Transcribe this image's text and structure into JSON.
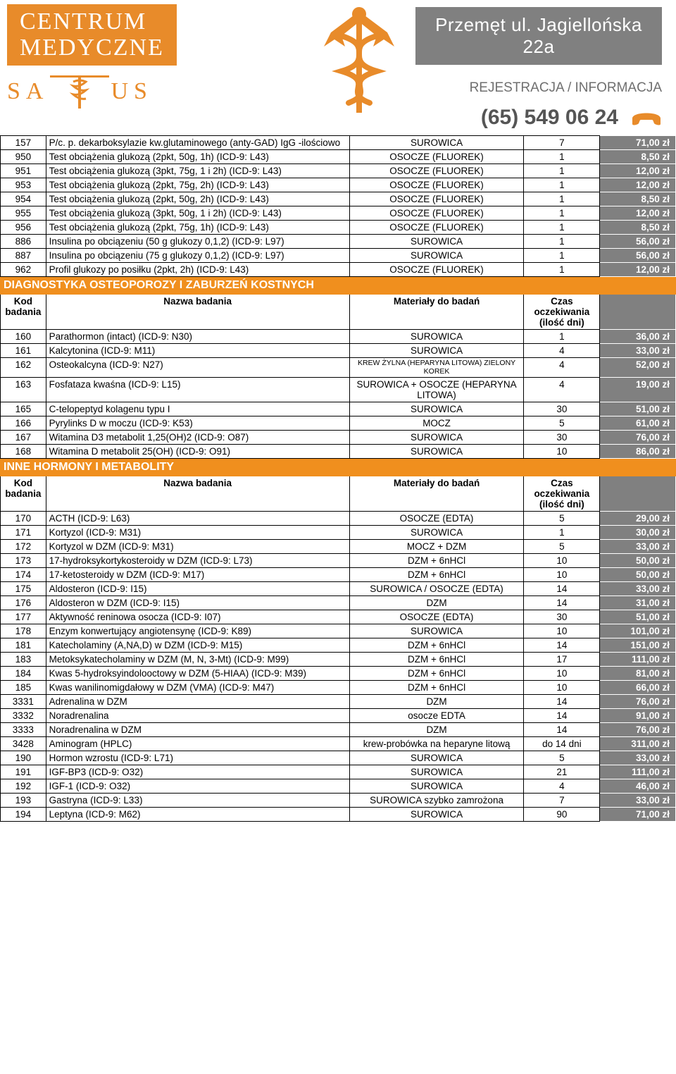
{
  "header": {
    "centrum": "CENTRUM\nMEDYCZNE",
    "salus_left": "SA",
    "salus_right": "US",
    "address": "Przemęt ul. Jagiellońska 22a",
    "reg": "REJESTRACJA / INFORMACJA",
    "phone": "(65) 549 06 24"
  },
  "columns": {
    "code": "Kod badania",
    "name": "Nazwa badania",
    "material": "Materiały do badań",
    "days": "Czas oczekiwania (ilość dni)"
  },
  "sections": [
    {
      "title": null,
      "showHeader": false,
      "rows": [
        {
          "code": "157",
          "name": "P/c. p. dekarboksylazie kw.glutaminowego (anty-GAD) IgG -ilościowo",
          "mat": "SUROWICA",
          "days": "7",
          "price": "71,00 zł"
        },
        {
          "code": "950",
          "name": "Test obciążenia glukozą (2pkt, 50g, 1h) (ICD-9: L43)",
          "mat": "OSOCZE (FLUOREK)",
          "days": "1",
          "price": "8,50 zł"
        },
        {
          "code": "951",
          "name": "Test obciążenia glukozą (3pkt, 75g, 1 i 2h) (ICD-9: L43)",
          "mat": "OSOCZE (FLUOREK)",
          "days": "1",
          "price": "12,00 zł"
        },
        {
          "code": "953",
          "name": "Test obciążenia glukozą (2pkt, 75g, 2h) (ICD-9: L43)",
          "mat": "OSOCZE (FLUOREK)",
          "days": "1",
          "price": "12,00 zł"
        },
        {
          "code": "954",
          "name": "Test obciążenia glukozą (2pkt, 50g, 2h) (ICD-9: L43)",
          "mat": "OSOCZE (FLUOREK)",
          "days": "1",
          "price": "8,50 zł"
        },
        {
          "code": "955",
          "name": "Test obciążenia glukozą (3pkt, 50g, 1 i 2h) (ICD-9: L43)",
          "mat": "OSOCZE (FLUOREK)",
          "days": "1",
          "price": "12,00 zł"
        },
        {
          "code": "956",
          "name": "Test obciążenia glukozą (2pkt, 75g, 1h) (ICD-9: L43)",
          "mat": "OSOCZE (FLUOREK)",
          "days": "1",
          "price": "8,50 zł"
        },
        {
          "code": "886",
          "name": "Insulina po obciązeniu (50 g glukozy 0,1,2) (ICD-9: L97)",
          "mat": "SUROWICA",
          "days": "1",
          "price": "56,00 zł"
        },
        {
          "code": "887",
          "name": "Insulina po obciązeniu (75 g glukozy 0,1,2) (ICD-9: L97)",
          "mat": "SUROWICA",
          "days": "1",
          "price": "56,00 zł"
        },
        {
          "code": "962",
          "name": "Profil glukozy po posiłku (2pkt, 2h) (ICD-9: L43)",
          "mat": "OSOCZE (FLUOREK)",
          "days": "1",
          "price": "12,00 zł"
        }
      ]
    },
    {
      "title": "DIAGNOSTYKA OSTEOPOROZY I ZABURZEŃ KOSTNYCH",
      "showHeader": true,
      "rows": [
        {
          "code": "160",
          "name": "Parathormon (intact) (ICD-9: N30)",
          "mat": "SUROWICA",
          "days": "1",
          "price": "36,00 zł"
        },
        {
          "code": "161",
          "name": "Kalcytonina (ICD-9: M11)",
          "mat": "SUROWICA",
          "days": "4",
          "price": "33,00 zł"
        },
        {
          "code": "162",
          "name": "Osteokalcyna (ICD-9: N27)",
          "mat": "KREW ŻYLNA  (HEPARYNA LITOWA) ZIELONY KOREK",
          "matSmall": true,
          "days": "4",
          "price": "52,00 zł"
        },
        {
          "code": "163",
          "name": "Fosfataza kwaśna (ICD-9: L15)",
          "mat": "SUROWICA + OSOCZE (HEPARYNA LITOWA)",
          "days": "4",
          "price": "19,00 zł"
        },
        {
          "code": "165",
          "name": "C-telopeptyd kolagenu typu I",
          "mat": "SUROWICA",
          "days": "30",
          "price": "51,00 zł"
        },
        {
          "code": "166",
          "name": "Pyrylinks D w moczu (ICD-9: K53)",
          "mat": "MOCZ",
          "days": "5",
          "price": "61,00 zł"
        },
        {
          "code": "167",
          "name": "Witamina D3 metabolit 1,25(OH)2 (ICD-9: O87)",
          "mat": "SUROWICA",
          "days": "30",
          "price": "76,00 zł"
        },
        {
          "code": "168",
          "name": "Witamina D metabolit 25(OH) (ICD-9: O91)",
          "mat": "SUROWICA",
          "days": "10",
          "price": "86,00 zł"
        }
      ]
    },
    {
      "title": "INNE HORMONY I METABOLITY",
      "showHeader": true,
      "rows": [
        {
          "code": "170",
          "name": "ACTH (ICD-9: L63)",
          "mat": "OSOCZE (EDTA)",
          "days": "5",
          "price": "29,00 zł"
        },
        {
          "code": "171",
          "name": "Kortyzol (ICD-9: M31)",
          "mat": "SUROWICA",
          "days": "1",
          "price": "30,00 zł"
        },
        {
          "code": "172",
          "name": "Kortyzol w DZM (ICD-9: M31)",
          "mat": "MOCZ + DZM",
          "days": "5",
          "price": "33,00 zł"
        },
        {
          "code": "173",
          "name": "17-hydroksykortykosteroidy w DZM (ICD-9: L73)",
          "mat": "DZM + 6nHCl",
          "days": "10",
          "price": "50,00 zł"
        },
        {
          "code": "174",
          "name": "17-ketosteroidy w DZM (ICD-9: M17)",
          "mat": "DZM + 6nHCl",
          "days": "10",
          "price": "50,00 zł"
        },
        {
          "code": "175",
          "name": "Aldosteron (ICD-9: I15)",
          "mat": "SUROWICA / OSOCZE (EDTA)",
          "days": "14",
          "price": "33,00 zł"
        },
        {
          "code": "176",
          "name": "Aldosteron w DZM (ICD-9: I15)",
          "mat": "DZM",
          "days": "14",
          "price": "31,00 zł"
        },
        {
          "code": "177",
          "name": "Aktywność reninowa osocza (ICD-9: I07)",
          "mat": "OSOCZE (EDTA)",
          "days": "30",
          "price": "51,00 zł"
        },
        {
          "code": "178",
          "name": "Enzym konwertujący angiotensynę (ICD-9: K89)",
          "mat": "SUROWICA",
          "days": "10",
          "price": "101,00 zł"
        },
        {
          "code": "181",
          "name": "Katecholaminy (A,NA,D) w DZM (ICD-9: M15)",
          "mat": "DZM + 6nHCl",
          "days": "14",
          "price": "151,00 zł"
        },
        {
          "code": "183",
          "name": "Metoksykatecholaminy w DZM (M, N, 3-Mt) (ICD-9: M99)",
          "mat": "DZM + 6nHCl",
          "days": "17",
          "price": "111,00 zł"
        },
        {
          "code": "184",
          "name": "Kwas 5-hydroksyindolooctowy w DZM (5-HIAA) (ICD-9: M39)",
          "mat": "DZM + 6nHCl",
          "days": "10",
          "price": "81,00 zł"
        },
        {
          "code": "185",
          "name": "Kwas wanilinomigdałowy w DZM (VMA) (ICD-9: M47)",
          "mat": "DZM + 6nHCl",
          "days": "10",
          "price": "66,00 zł"
        },
        {
          "code": "3331",
          "name": "Adrenalina w DZM",
          "mat": "DZM",
          "days": "14",
          "price": "76,00 zł"
        },
        {
          "code": "3332",
          "name": " Noradrenalina",
          "mat": "osocze EDTA",
          "days": "14",
          "price": "91,00 zł"
        },
        {
          "code": "3333",
          "name": "Noradrenalina w DZM",
          "mat": "DZM",
          "days": "14",
          "price": "76,00 zł"
        },
        {
          "code": "3428",
          "name": "Aminogram (HPLC)",
          "mat": "krew-probówka na heparyne litową",
          "days": "do 14 dni",
          "price": "311,00 zł"
        },
        {
          "code": "190",
          "name": "Hormon wzrostu (ICD-9: L71)",
          "mat": "SUROWICA",
          "days": "5",
          "price": "33,00 zł"
        },
        {
          "code": "191",
          "name": "IGF-BP3 (ICD-9: O32)",
          "mat": "SUROWICA",
          "days": "21",
          "price": "111,00 zł"
        },
        {
          "code": "192",
          "name": "IGF-1 (ICD-9: O32)",
          "mat": "SUROWICA",
          "days": "4",
          "price": "46,00 zł"
        },
        {
          "code": "193",
          "name": "Gastryna (ICD-9: L33)",
          "mat": "SUROWICA szybko zamrożona",
          "days": "7",
          "price": "33,00 zł"
        },
        {
          "code": "194",
          "name": "Leptyna (ICD-9: M62)",
          "mat": "SUROWICA",
          "days": "90",
          "price": "71,00 zł"
        }
      ]
    }
  ],
  "style": {
    "accent": "#f08f1e",
    "grey": "#808080",
    "row_border": "#000000"
  }
}
